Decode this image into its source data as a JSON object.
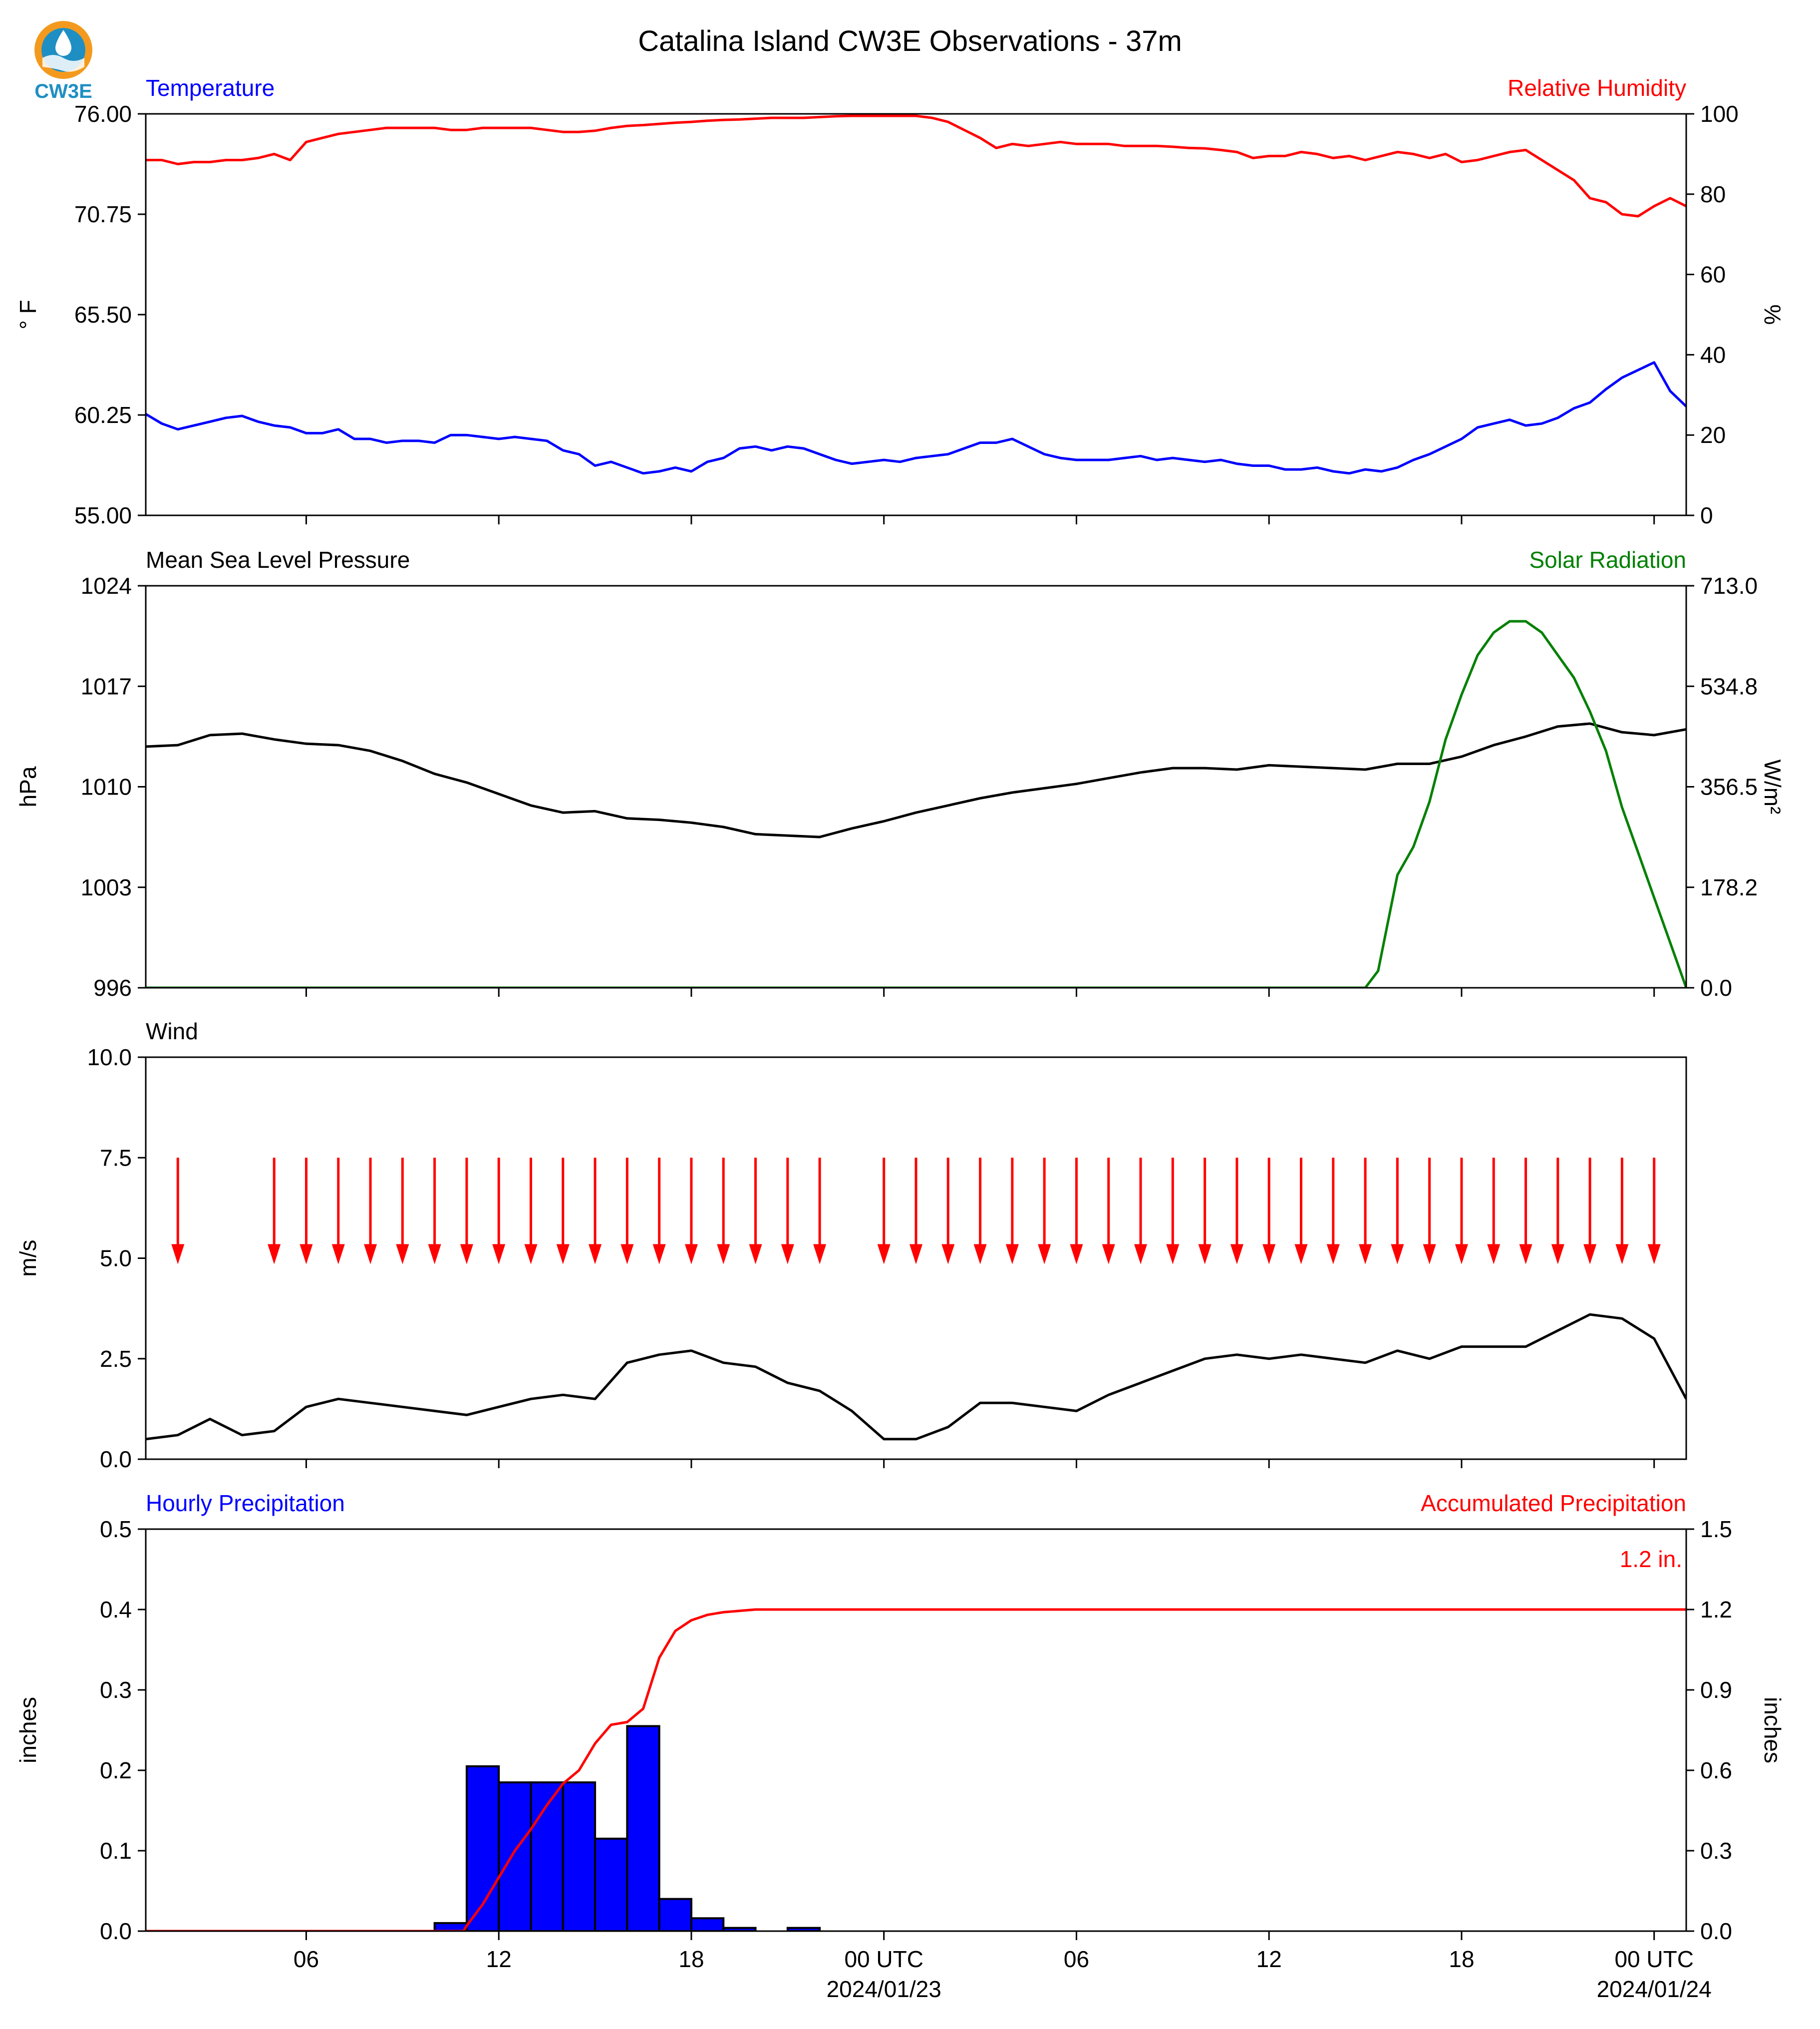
{
  "figure": {
    "title": "Catalina Island CW3E Observations - 37m",
    "logo_text": "CW3E",
    "colors": {
      "blue": "#0000ff",
      "red": "#ff0000",
      "green": "#008000",
      "black": "#000000",
      "logo_blue": "#1f8fc3",
      "logo_orange": "#f39a1e"
    }
  },
  "chart_data": [
    {
      "type": "line",
      "title_left": "Temperature",
      "title_right": "Relative Humidity",
      "ylabel_left": "° F",
      "ylabel_right": "%",
      "ylim_left": [
        55.0,
        76.0
      ],
      "ylim_right": [
        0,
        100
      ],
      "yticks_left": [
        "55.00",
        "60.25",
        "65.50",
        "70.75",
        "76.00"
      ],
      "yticks_right": [
        "0",
        "20",
        "40",
        "60",
        "80",
        "100"
      ],
      "xlim_hours": [
        0,
        48
      ],
      "series": [
        {
          "name": "Temperature",
          "axis": "left",
          "color": "#0000ff",
          "x": [
            0,
            0.5,
            1,
            1.5,
            2,
            2.5,
            3,
            3.5,
            4,
            4.5,
            5,
            5.5,
            6,
            6.5,
            7,
            7.5,
            8,
            8.5,
            9,
            9.5,
            10,
            10.5,
            11,
            11.5,
            12,
            12.5,
            13,
            13.5,
            14,
            14.5,
            15,
            15.5,
            16,
            16.5,
            17,
            17.5,
            18,
            18.5,
            19,
            19.5,
            20,
            20.5,
            21,
            21.5,
            22,
            22.5,
            23,
            23.5,
            24,
            24.5,
            25,
            25.5,
            26,
            26.5,
            27,
            27.5,
            28,
            28.5,
            29,
            29.5,
            30,
            30.5,
            31,
            31.5,
            32,
            32.5,
            33,
            33.5,
            34,
            34.5,
            35,
            35.5,
            36,
            36.5,
            37,
            37.5,
            38,
            38.5,
            39,
            39.5,
            40,
            40.5,
            41,
            41.5,
            42,
            42.5,
            43,
            43.5,
            44,
            44.5,
            45,
            45.5,
            46,
            46.5,
            47,
            47.5,
            48
          ],
          "y": [
            60.3,
            59.8,
            59.5,
            59.7,
            59.9,
            60.1,
            60.2,
            59.9,
            59.7,
            59.6,
            59.3,
            59.3,
            59.5,
            59.0,
            59.0,
            58.8,
            58.9,
            58.9,
            58.8,
            59.2,
            59.2,
            59.1,
            59.0,
            59.1,
            59.0,
            58.9,
            58.4,
            58.2,
            57.6,
            57.8,
            57.5,
            57.2,
            57.3,
            57.5,
            57.3,
            57.8,
            58.0,
            58.5,
            58.6,
            58.4,
            58.6,
            58.5,
            58.2,
            57.9,
            57.7,
            57.8,
            57.9,
            57.8,
            58.0,
            58.1,
            58.2,
            58.5,
            58.8,
            58.8,
            59.0,
            58.6,
            58.2,
            58.0,
            57.9,
            57.9,
            57.9,
            58.0,
            58.1,
            57.9,
            58.0,
            57.9,
            57.8,
            57.9,
            57.7,
            57.6,
            57.6,
            57.4,
            57.4,
            57.5,
            57.3,
            57.2,
            57.4,
            57.3,
            57.5,
            57.9,
            58.2,
            58.6,
            59.0,
            59.6,
            59.8,
            60.0,
            59.7,
            59.8,
            60.1,
            60.6,
            60.9,
            61.6,
            62.2,
            62.6,
            63.0,
            61.5,
            60.7
          ]
        },
        {
          "name": "Relative Humidity",
          "axis": "right",
          "color": "#ff0000",
          "x": [
            0,
            0.5,
            1,
            1.5,
            2,
            2.5,
            3,
            3.5,
            4,
            4.5,
            5,
            5.5,
            6,
            6.5,
            7,
            7.5,
            8,
            8.5,
            9,
            9.5,
            10,
            10.5,
            11,
            11.5,
            12,
            12.5,
            13,
            13.5,
            14,
            14.5,
            15,
            15.5,
            16,
            16.5,
            17,
            17.5,
            18,
            18.5,
            19,
            19.5,
            20,
            20.5,
            21,
            21.5,
            22,
            22.5,
            23,
            23.5,
            24,
            24.5,
            25,
            25.5,
            26,
            26.5,
            27,
            27.5,
            28,
            28.5,
            29,
            29.5,
            30,
            30.5,
            31,
            31.5,
            32,
            32.5,
            33,
            33.5,
            34,
            34.5,
            35,
            35.5,
            36,
            36.5,
            37,
            37.5,
            38,
            38.5,
            39,
            39.5,
            40,
            40.5,
            41,
            41.5,
            42,
            42.5,
            43,
            43.5,
            44,
            44.5,
            45,
            45.5,
            46,
            46.5,
            47,
            47.5,
            48
          ],
          "y": [
            88.5,
            88.5,
            87.5,
            88,
            88,
            88.5,
            88.5,
            89,
            90,
            88.5,
            93,
            94,
            95,
            95.5,
            96,
            96.5,
            96.5,
            96.5,
            96.5,
            96,
            96,
            96.5,
            96.5,
            96.5,
            96.5,
            96,
            95.5,
            95.5,
            95.8,
            96.5,
            97,
            97.2,
            97.5,
            97.8,
            98,
            98.3,
            98.5,
            98.6,
            98.8,
            99,
            99,
            99,
            99.2,
            99.4,
            99.5,
            99.5,
            99.5,
            99.5,
            99.5,
            99,
            98,
            96,
            94,
            91.5,
            92.5,
            92,
            92.5,
            93,
            92.5,
            92.5,
            92.5,
            92,
            92,
            92,
            91.8,
            91.5,
            91.4,
            91,
            90.5,
            89,
            89.5,
            89.5,
            90.5,
            90,
            89,
            89.5,
            88.5,
            89.5,
            90.5,
            90,
            89,
            90,
            88,
            88.5,
            89.5,
            90.5,
            91,
            88.5,
            86,
            83.5,
            79,
            78,
            75,
            74.5,
            77,
            79,
            77
          ]
        }
      ]
    },
    {
      "type": "line",
      "title_left": "Mean Sea Level Pressure",
      "title_right": "Solar Radiation",
      "ylabel_left": "hPa",
      "ylabel_right": "W/m²",
      "ylim_left": [
        996,
        1024
      ],
      "ylim_right": [
        0.0,
        713.0
      ],
      "yticks_left": [
        "996",
        "1003",
        "1010",
        "1017",
        "1024"
      ],
      "yticks_right": [
        "0.0",
        "178.2",
        "356.5",
        "534.8",
        "713.0"
      ],
      "xlim_hours": [
        0,
        48
      ],
      "series": [
        {
          "name": "Mean Sea Level Pressure",
          "axis": "left",
          "color": "#000000",
          "x": [
            0,
            1,
            2,
            3,
            4,
            5,
            6,
            7,
            8,
            9,
            10,
            11,
            12,
            13,
            14,
            15,
            16,
            17,
            18,
            19,
            20,
            21,
            22,
            23,
            24,
            25,
            26,
            27,
            28,
            29,
            30,
            31,
            32,
            33,
            34,
            35,
            36,
            37,
            38,
            39,
            40,
            41,
            42,
            43,
            44,
            45,
            46,
            47,
            48
          ],
          "y": [
            1012.8,
            1012.9,
            1013.6,
            1013.7,
            1013.3,
            1013.0,
            1012.9,
            1012.5,
            1011.8,
            1010.9,
            1010.3,
            1009.5,
            1008.7,
            1008.2,
            1008.3,
            1007.8,
            1007.7,
            1007.5,
            1007.2,
            1006.7,
            1006.6,
            1006.5,
            1007.1,
            1007.6,
            1008.2,
            1008.7,
            1009.2,
            1009.6,
            1009.9,
            1010.2,
            1010.6,
            1011.0,
            1011.3,
            1011.3,
            1011.2,
            1011.5,
            1011.4,
            1011.3,
            1011.2,
            1011.6,
            1011.6,
            1012.1,
            1012.9,
            1013.5,
            1014.2,
            1014.4,
            1013.8,
            1013.6,
            1014.0
          ]
        },
        {
          "name": "Solar Radiation",
          "axis": "right",
          "color": "#008000",
          "x": [
            0,
            13,
            14,
            15,
            16,
            17,
            18,
            18.5,
            19,
            19.5,
            20,
            20.5,
            21,
            21.5,
            22,
            22.5,
            23,
            23.5,
            24,
            25,
            38,
            38.4,
            39,
            39.5,
            40,
            40.5,
            41,
            41.5,
            42,
            42.5,
            43,
            43.5,
            44,
            44.5,
            45,
            45.5,
            46,
            46.5,
            47,
            47.5,
            48
          ],
          "y": [
            0,
            0,
            0,
            0,
            0,
            0,
            0,
            0,
            0,
            0,
            0,
            0,
            0,
            0,
            0,
            0,
            0,
            0,
            0,
            0,
            0,
            30,
            200,
            250,
            330,
            440,
            520,
            590,
            630,
            650,
            650,
            630,
            590,
            550,
            490,
            420,
            320,
            240,
            160,
            80,
            0
          ]
        }
      ]
    },
    {
      "type": "line",
      "title_left": "Wind",
      "ylabel_left": "m/s",
      "ylim_left": [
        0.0,
        10.0
      ],
      "yticks_left": [
        "0.0",
        "2.5",
        "5.0",
        "7.5",
        "10.0"
      ],
      "xlim_hours": [
        0,
        48
      ],
      "series": [
        {
          "name": "Wind Speed",
          "axis": "left",
          "color": "#000000",
          "x": [
            0,
            1,
            2,
            3,
            4,
            5,
            6,
            7,
            8,
            9,
            10,
            11,
            12,
            13,
            14,
            15,
            16,
            17,
            18,
            19,
            20,
            21,
            22,
            23,
            24,
            25,
            26,
            27,
            28,
            29,
            30,
            31,
            32,
            33,
            34,
            35,
            36,
            37,
            38,
            39,
            40,
            41,
            42,
            43,
            44,
            45,
            46,
            47,
            48
          ],
          "y": [
            0.5,
            0.6,
            1.0,
            0.6,
            0.7,
            1.3,
            1.5,
            1.4,
            1.3,
            1.2,
            1.1,
            1.3,
            1.5,
            1.6,
            1.5,
            2.4,
            2.6,
            2.7,
            2.4,
            2.3,
            1.9,
            1.7,
            1.2,
            0.5,
            0.5,
            0.8,
            1.4,
            1.4,
            1.3,
            1.2,
            1.6,
            1.9,
            2.2,
            2.5,
            2.6,
            2.5,
            2.6,
            2.5,
            2.4,
            2.7,
            2.5,
            2.8,
            2.8,
            2.8,
            3.2,
            3.6,
            3.5,
            3.0,
            1.5
          ]
        }
      ],
      "wind_direction_arrows": {
        "color": "#ff0000",
        "direction": "north",
        "hours": [
          1,
          4,
          5,
          6,
          7,
          8,
          9,
          10,
          11,
          12,
          13,
          14,
          15,
          16,
          17,
          18,
          19,
          20,
          21,
          23,
          24,
          25,
          26,
          27,
          28,
          29,
          30,
          31,
          32,
          33,
          34,
          35,
          36,
          37,
          38,
          39,
          40,
          41,
          42,
          43,
          44,
          45,
          46,
          47
        ]
      }
    },
    {
      "type": "bar",
      "title_left": "Hourly Precipitation",
      "title_right": "Accumulated Precipitation",
      "ylabel_left": "inches",
      "ylabel_right": "inches",
      "ylim_left": [
        0.0,
        0.5
      ],
      "ylim_right": [
        0.0,
        1.5
      ],
      "yticks_left": [
        "0.0",
        "0.1",
        "0.2",
        "0.3",
        "0.4",
        "0.5"
      ],
      "yticks_right": [
        "0.0",
        "0.3",
        "0.6",
        "0.9",
        "1.2",
        "1.5"
      ],
      "xlim_hours": [
        0,
        48
      ],
      "annotation": "1.2 in.",
      "xticks": [
        {
          "hour": 5,
          "label": "06",
          "sub": ""
        },
        {
          "hour": 11,
          "label": "12",
          "sub": ""
        },
        {
          "hour": 17,
          "label": "18",
          "sub": ""
        },
        {
          "hour": 23,
          "label": "00 UTC",
          "sub": "2024/01/23"
        },
        {
          "hour": 29,
          "label": "06",
          "sub": ""
        },
        {
          "hour": 35,
          "label": "12",
          "sub": ""
        },
        {
          "hour": 41,
          "label": "18",
          "sub": ""
        },
        {
          "hour": 47,
          "label": "00 UTC",
          "sub": "2024/01/24"
        }
      ],
      "series": [
        {
          "name": "Hourly Precipitation",
          "axis": "left",
          "color": "#0000ff",
          "hours": [
            9,
            10,
            11,
            12,
            13,
            14,
            15,
            16,
            17,
            18,
            20
          ],
          "values": [
            0.01,
            0.205,
            0.185,
            0.185,
            0.185,
            0.115,
            0.255,
            0.04,
            0.016,
            0.004,
            0.004
          ]
        },
        {
          "name": "Accumulated Precipitation",
          "axis": "right",
          "color": "#ff0000",
          "x": [
            0,
            9.9,
            10,
            10.5,
            11,
            11.5,
            12,
            12.5,
            13,
            13.5,
            14,
            14.5,
            15,
            15.5,
            16,
            16.5,
            17,
            17.5,
            18,
            19,
            20,
            21,
            48
          ],
          "y": [
            0,
            0,
            0.02,
            0.1,
            0.2,
            0.3,
            0.38,
            0.47,
            0.55,
            0.6,
            0.7,
            0.77,
            0.78,
            0.83,
            1.02,
            1.12,
            1.16,
            1.18,
            1.19,
            1.2,
            1.2,
            1.2,
            1.2
          ]
        }
      ]
    }
  ]
}
